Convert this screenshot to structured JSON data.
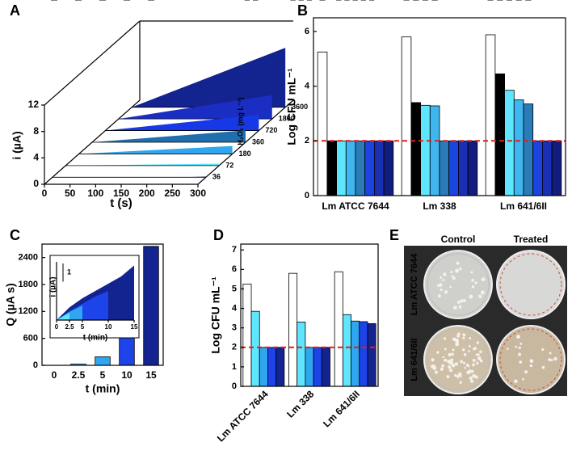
{
  "chart_data": [
    {
      "type": "waterfall",
      "label": "A",
      "xlabel": "t (s)",
      "ylabel": "i (µA)",
      "zlabel": "H₂O₂ (mg L⁻¹)",
      "x": [
        0,
        50,
        100,
        150,
        200,
        250,
        300
      ],
      "xlim": [
        0,
        300
      ],
      "xticks": [
        0,
        50,
        100,
        150,
        200,
        250,
        300
      ],
      "ylim": [
        0,
        12
      ],
      "yticks": [
        0,
        4,
        8,
        12
      ],
      "series": [
        {
          "name": "36",
          "color": "#1a1f5e",
          "values": [
            0,
            0,
            0,
            0,
            0,
            0,
            0.1
          ]
        },
        {
          "name": "72",
          "color": "#5fe6ff",
          "values": [
            0,
            0.05,
            0.1,
            0.15,
            0.2,
            0.25,
            0.3
          ]
        },
        {
          "name": "180",
          "color": "#2ea6f0",
          "values": [
            0,
            0.2,
            0.4,
            0.6,
            0.8,
            1.0,
            1.2
          ]
        },
        {
          "name": "360",
          "color": "#1f6fae",
          "values": [
            0,
            0.3,
            0.6,
            0.9,
            1.2,
            1.5,
            1.8
          ]
        },
        {
          "name": "720",
          "color": "#1638e6",
          "values": [
            0,
            0.4,
            0.8,
            1.2,
            1.6,
            2.0,
            2.4
          ]
        },
        {
          "name": "1800",
          "color": "#1a2ec4",
          "values": [
            0,
            0.6,
            1.2,
            1.8,
            2.4,
            3.0,
            3.6
          ]
        },
        {
          "name": "3600",
          "color": "#13238f",
          "values": [
            0,
            1.5,
            3.0,
            4.5,
            6.0,
            7.5,
            9.0
          ]
        }
      ]
    },
    {
      "type": "bar",
      "label": "B",
      "ylabel": "Log CFU mL⁻¹",
      "categories": [
        "Lm ATCC 7644",
        "Lm 338",
        "Lm 641/6II"
      ],
      "ylim": [
        0,
        6.5
      ],
      "yticks": [
        0,
        2,
        4,
        6
      ],
      "threshold": 2,
      "threshold_color": "#e0201c",
      "series": [
        {
          "color": "#ffffff",
          "values": [
            5.25,
            5.8,
            5.88
          ],
          "errors": [
            0.32,
            0.25,
            0.25
          ]
        },
        {
          "color": "#000000",
          "values": [
            2,
            3.4,
            4.45
          ],
          "errors": [
            0,
            0.1,
            0.12
          ]
        },
        {
          "color": "#5fe6ff",
          "values": [
            2,
            3.3,
            3.85
          ],
          "errors": [
            0,
            0.05,
            0.04
          ]
        },
        {
          "color": "#3fb6ee",
          "values": [
            2,
            3.28,
            3.5
          ],
          "errors": [
            0,
            0.06,
            0.08
          ]
        },
        {
          "color": "#2a7cb8",
          "values": [
            2,
            2,
            3.35
          ],
          "errors": [
            0,
            0,
            0.08
          ]
        },
        {
          "color": "#1c44e0",
          "values": [
            2,
            2,
            2
          ],
          "errors": [
            0,
            0,
            0
          ]
        },
        {
          "color": "#1a30b4",
          "values": [
            2,
            2,
            2
          ],
          "errors": [
            0,
            0,
            0
          ]
        },
        {
          "color": "#121c7c",
          "values": [
            2,
            2,
            2
          ],
          "errors": [
            0,
            0,
            0
          ]
        }
      ]
    },
    {
      "type": "bar",
      "label": "C",
      "xlabel": "t (min)",
      "ylabel": "Q (µA s)",
      "categories": [
        "0",
        "2.5",
        "5",
        "10",
        "15"
      ],
      "values": [
        0,
        30,
        190,
        860,
        2650
      ],
      "errors": [
        5,
        15,
        30,
        30,
        50
      ],
      "colors": [
        "#ffffff",
        "#5fe6ff",
        "#2ea6f0",
        "#1c44e8",
        "#13238f"
      ],
      "ylim": [
        0,
        2700
      ],
      "yticks": [
        0,
        600,
        1200,
        1800,
        2400
      ]
    },
    {
      "type": "area",
      "xlabel": "t (min)",
      "ylabel": "i (µA)",
      "xlim": [
        0,
        15
      ],
      "xticks": [
        0,
        2.5,
        5,
        10,
        15
      ],
      "ylim": [
        0,
        3.2
      ],
      "scalebar": {
        "value": 1,
        "label": "1"
      },
      "series": [
        {
          "color": "#13238f",
          "x": [
            0,
            2.5,
            5,
            7.5,
            10,
            12.5,
            15
          ],
          "values": [
            0,
            0.7,
            1.2,
            1.6,
            2.0,
            2.4,
            3.0
          ]
        },
        {
          "color": "#1c44e8",
          "x": [
            0,
            2.5,
            5,
            7.5,
            10
          ],
          "values": [
            0,
            0.5,
            0.9,
            1.3,
            1.6
          ]
        },
        {
          "color": "#2ea6f0",
          "x": [
            0,
            2.5,
            5
          ],
          "values": [
            0,
            0.45,
            0.8
          ]
        },
        {
          "color": "#5fe6ff",
          "x": [
            0,
            2.5
          ],
          "values": [
            0,
            0.4
          ]
        }
      ]
    },
    {
      "type": "bar",
      "label": "D",
      "ylabel": "Log CFU mL⁻¹",
      "categories": [
        "Lm ATCC 7644",
        "Lm 338",
        "Lm 641/6II"
      ],
      "ylim": [
        0,
        7.3
      ],
      "yticks": [
        0,
        1,
        2,
        3,
        4,
        5,
        6,
        7
      ],
      "threshold": 2,
      "threshold_color": "#e0201c",
      "series": [
        {
          "color": "#ffffff",
          "values": [
            5.25,
            5.8,
            5.88
          ],
          "errors": [
            0.3,
            0.25,
            0.25
          ]
        },
        {
          "color": "#5fe6ff",
          "values": [
            3.85,
            3.3,
            3.68
          ],
          "errors": [
            0.03,
            0.05,
            0.05
          ]
        },
        {
          "color": "#2ea6f0",
          "values": [
            2,
            2,
            3.35
          ],
          "errors": [
            0,
            0.05,
            0.08
          ]
        },
        {
          "color": "#1c44e8",
          "values": [
            2,
            2,
            3.32
          ],
          "errors": [
            0,
            0,
            0.08
          ]
        },
        {
          "color": "#13238f",
          "values": [
            2,
            2,
            3.22
          ],
          "errors": [
            0,
            0,
            0.04
          ]
        }
      ]
    }
  ],
  "photos": {
    "label": "E",
    "columns": [
      "Control",
      "Treated"
    ],
    "rows": [
      "Lm ATCC 7644",
      "Lm 641/6II"
    ]
  }
}
